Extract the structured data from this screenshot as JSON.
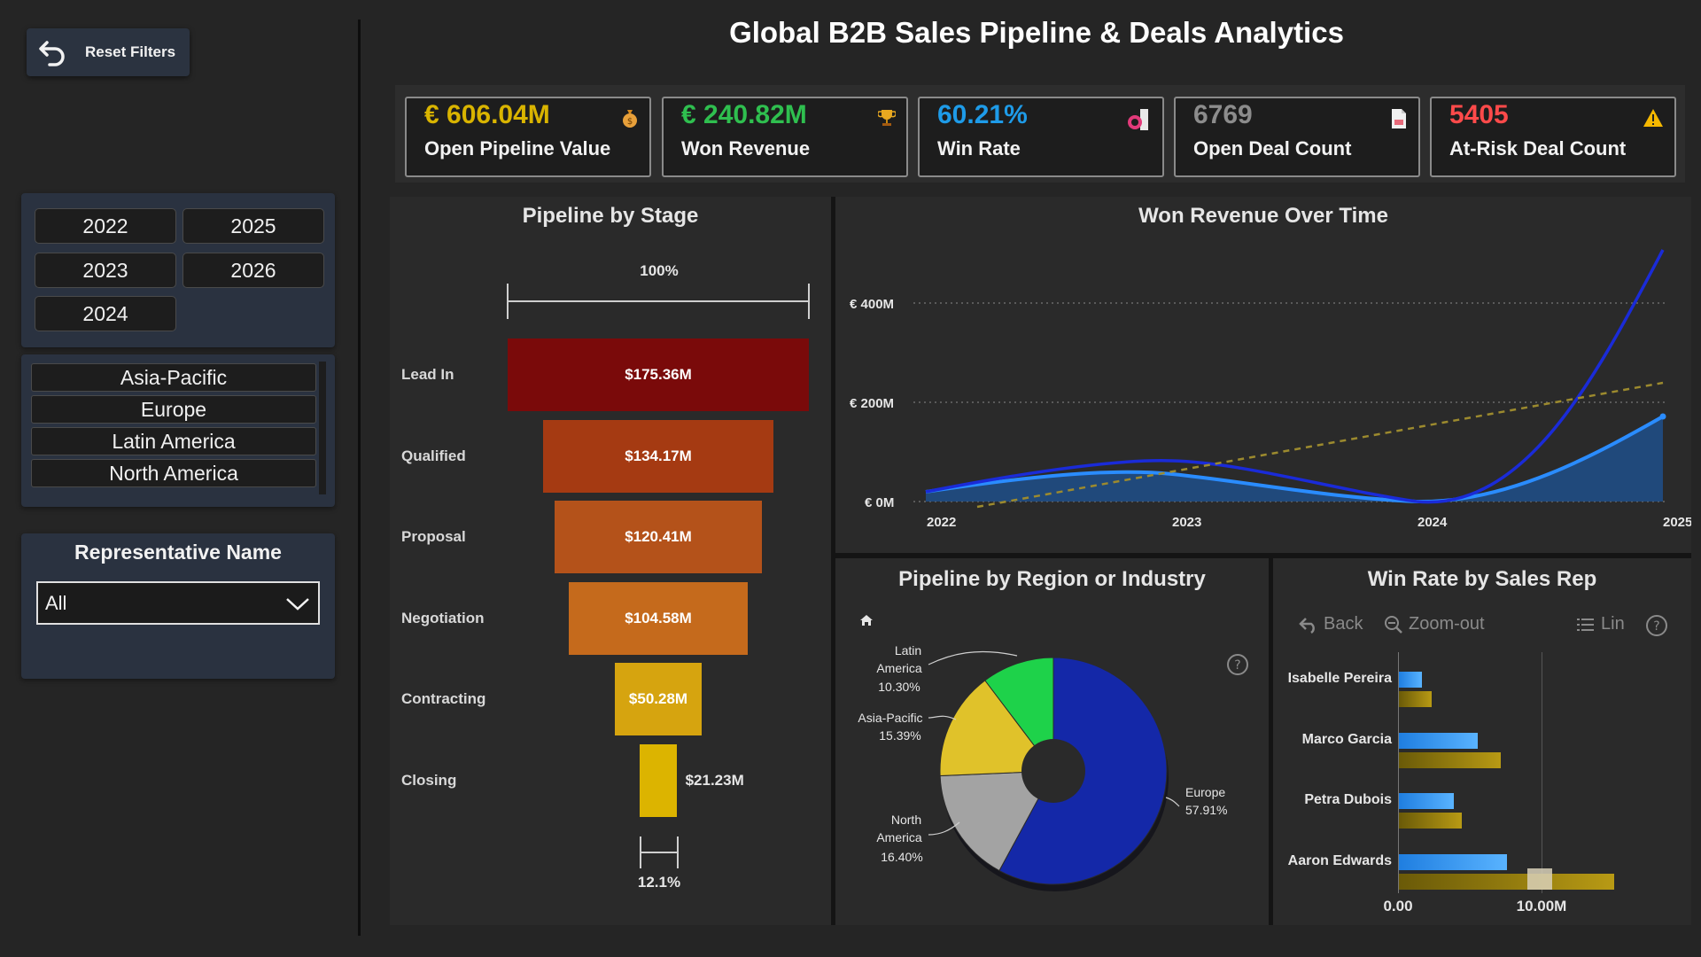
{
  "filters": {
    "reset_label": "Reset Filters",
    "years": [
      "2022",
      "2025",
      "2023",
      "2026",
      "2024"
    ],
    "regions": [
      "Asia-Pacific",
      "Europe",
      "Latin America",
      "North America"
    ],
    "rep_title": "Representative Name",
    "rep_value": "All"
  },
  "title": "Global B2B Sales Pipeline & Deals Analytics",
  "kpis": [
    {
      "value": "€ 606.04M",
      "label": "Open Pipeline Value",
      "color": "#d9b400",
      "icon": "money-bag-icon"
    },
    {
      "value": "€ 240.82M",
      "label": "Won Revenue",
      "color": "#2fbf4f",
      "icon": "trophy-icon"
    },
    {
      "value": "60.21%",
      "label": "Win Rate",
      "color": "#1e9be8",
      "icon": "gauge-icon"
    },
    {
      "value": "6769",
      "label": "Open Deal Count",
      "color": "#8c8c8c",
      "icon": "document-icon"
    },
    {
      "value": "5405",
      "label": "At-Risk Deal Count",
      "color": "#ff4a4a",
      "icon": "warning-icon"
    }
  ],
  "funnel": {
    "title": "Pipeline by Stage",
    "top_pct": "100%",
    "bottom_pct": "12.1%",
    "stages": [
      {
        "label": "Lead In",
        "value": "$175.36M",
        "amount": 175.36,
        "color": "#7a0a0a"
      },
      {
        "label": "Qualified",
        "value": "$134.17M",
        "amount": 134.17,
        "color": "#a53a12"
      },
      {
        "label": "Proposal",
        "value": "$120.41M",
        "amount": 120.41,
        "color": "#b4521a"
      },
      {
        "label": "Negotiation",
        "value": "$104.58M",
        "amount": 104.58,
        "color": "#c56a1c"
      },
      {
        "label": "Contracting",
        "value": "$50.28M",
        "amount": 50.28,
        "color": "#d6a40f"
      },
      {
        "label": "Closing",
        "value": "$21.23M",
        "amount": 21.23,
        "color": "#dcb400"
      }
    ]
  },
  "revenue": {
    "title": "Won Revenue Over Time",
    "y_ticks": [
      "€ 400M",
      "€ 200M",
      "€ 0M"
    ],
    "x_ticks": [
      "2022",
      "2023",
      "2024",
      "2025"
    ]
  },
  "region_pie": {
    "title": "Pipeline by Region or Industry",
    "slices": [
      {
        "name": "Europe",
        "pct": "57.91%",
        "value": 57.91,
        "color": "#1428a8"
      },
      {
        "name": "North America",
        "pct": "16.40%",
        "value": 16.4,
        "color": "#a3a3a3"
      },
      {
        "name": "Asia-Pacific",
        "pct": "15.39%",
        "value": 15.39,
        "color": "#e0c22a"
      },
      {
        "name": "Latin America",
        "pct": "10.30%",
        "value": 10.3,
        "color": "#1ed24a"
      }
    ]
  },
  "winrate": {
    "title": "Win Rate by Sales Rep",
    "back": "Back",
    "zoom_out": "Zoom-out",
    "lin": "Lin",
    "x_ticks": [
      "0.00",
      "10.00M"
    ],
    "reps": [
      {
        "name": "Isabelle Pereira",
        "blue": 1.6,
        "gold": 2.3
      },
      {
        "name": "Marco Garcia",
        "blue": 5.5,
        "gold": 7.1
      },
      {
        "name": "Petra Dubois",
        "blue": 3.8,
        "gold": 4.4
      },
      {
        "name": "Aaron Edwards",
        "blue": 7.5,
        "gold": 15.0
      }
    ]
  },
  "chart_data": [
    {
      "type": "bar",
      "title": "Pipeline by Stage",
      "categories": [
        "Lead In",
        "Qualified",
        "Proposal",
        "Negotiation",
        "Contracting",
        "Closing"
      ],
      "values": [
        175.36,
        134.17,
        120.41,
        104.58,
        50.28,
        21.23
      ]
    },
    {
      "type": "line",
      "title": "Won Revenue Over Time",
      "x": [
        "2022",
        "2023",
        "2024",
        "2025"
      ],
      "ylim": [
        0,
        500
      ],
      "series": [
        {
          "values": [
            5,
            55,
            0,
            170
          ],
          "color": "#2a8cff"
        },
        {
          "values": [
            10,
            85,
            0,
            500
          ],
          "color": "#1a2bd8"
        },
        {
          "values": [
            -10,
            60,
            150,
            240
          ],
          "color": "#9c8a2e"
        }
      ]
    },
    {
      "type": "pie",
      "title": "Pipeline by Region or Industry",
      "categories": [
        "Europe",
        "North America",
        "Asia-Pacific",
        "Latin America"
      ],
      "values": [
        57.91,
        16.4,
        15.39,
        10.3
      ]
    },
    {
      "type": "bar",
      "title": "Win Rate by Sales Rep",
      "categories": [
        "Isabelle Pereira",
        "Marco Garcia",
        "Petra Dubois",
        "Aaron Edwards"
      ],
      "series": [
        {
          "values": [
            1.6,
            5.5,
            3.8,
            7.5
          ],
          "color": "#3d9cf0"
        },
        {
          "values": [
            2.3,
            7.1,
            4.4,
            15.0
          ],
          "color": "#9c8a10"
        }
      ],
      "xlim": [
        0,
        15
      ]
    }
  ]
}
